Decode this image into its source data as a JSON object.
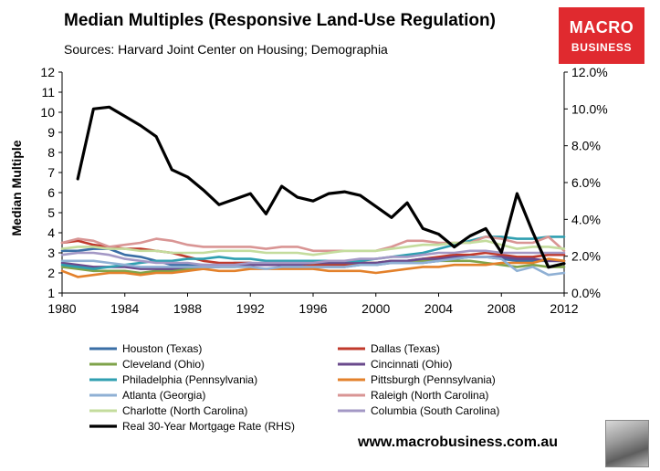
{
  "header": {
    "title": "Median Multiples (Responsive Land-Use Regulation)",
    "subtitle": "Sources: Harvard Joint Center on Housing; Demographia"
  },
  "logo": {
    "line1": "MACRO",
    "line2": "BUSINESS"
  },
  "footer": {
    "website": "www.macrobusiness.com.au",
    "wolf_icon": "wolf-icon"
  },
  "chart_data": {
    "type": "line",
    "title": "Median Multiples (Responsive Land-Use Regulation)",
    "ylabel": "Median Multiple",
    "ylabel_right": "",
    "xlabel": "",
    "ylim": [
      1,
      12
    ],
    "y2lim": [
      0,
      12
    ],
    "xlim": [
      1980,
      2012
    ],
    "x_ticks": [
      "1980",
      "1984",
      "1988",
      "1992",
      "1996",
      "2000",
      "2004",
      "2008",
      "2012"
    ],
    "y_ticks": [
      "1",
      "2",
      "3",
      "4",
      "5",
      "6",
      "7",
      "8",
      "9",
      "10",
      "11",
      "12"
    ],
    "y2_ticks": [
      "0.0%",
      "2.0%",
      "4.0%",
      "6.0%",
      "8.0%",
      "10.0%",
      "12.0%"
    ],
    "grid": false,
    "legend_position": "bottom",
    "x": [
      1980,
      1981,
      1982,
      1983,
      1984,
      1985,
      1986,
      1987,
      1988,
      1989,
      1990,
      1991,
      1992,
      1993,
      1994,
      1995,
      1996,
      1997,
      1998,
      1999,
      2000,
      2001,
      2002,
      2003,
      2004,
      2005,
      2006,
      2007,
      2008,
      2009,
      2010,
      2011,
      2012
    ],
    "series": [
      {
        "name": "Houston (Texas)",
        "color": "#3a6ea5",
        "axis": "left",
        "values": [
          3.1,
          3.1,
          3.2,
          3.2,
          2.9,
          2.8,
          2.6,
          2.4,
          2.4,
          2.4,
          2.4,
          2.5,
          2.5,
          2.4,
          2.4,
          2.3,
          2.3,
          2.3,
          2.3,
          2.4,
          2.4,
          2.5,
          2.5,
          2.5,
          2.6,
          2.7,
          2.8,
          2.8,
          2.7,
          2.6,
          2.6,
          2.6,
          2.6
        ]
      },
      {
        "name": "Dallas (Texas)",
        "color": "#c0392b",
        "axis": "left",
        "values": [
          3.5,
          3.6,
          3.4,
          3.3,
          3.2,
          3.2,
          3.1,
          3.0,
          2.8,
          2.6,
          2.5,
          2.5,
          2.5,
          2.4,
          2.4,
          2.4,
          2.4,
          2.4,
          2.4,
          2.5,
          2.5,
          2.6,
          2.6,
          2.7,
          2.8,
          2.9,
          2.9,
          3.0,
          2.9,
          2.8,
          2.8,
          2.9,
          2.9
        ]
      },
      {
        "name": "Cleveland (Ohio)",
        "color": "#7fa34a",
        "axis": "left",
        "values": [
          2.3,
          2.2,
          2.1,
          2.1,
          2.1,
          2.0,
          2.1,
          2.1,
          2.2,
          2.3,
          2.3,
          2.3,
          2.4,
          2.4,
          2.4,
          2.4,
          2.5,
          2.5,
          2.5,
          2.5,
          2.5,
          2.6,
          2.6,
          2.6,
          2.6,
          2.6,
          2.6,
          2.5,
          2.4,
          2.3,
          2.4,
          2.3,
          2.3
        ]
      },
      {
        "name": "Cincinnati (Ohio)",
        "color": "#6a4a8c",
        "axis": "left",
        "values": [
          2.5,
          2.4,
          2.3,
          2.3,
          2.3,
          2.2,
          2.2,
          2.2,
          2.3,
          2.3,
          2.3,
          2.4,
          2.4,
          2.4,
          2.4,
          2.4,
          2.5,
          2.5,
          2.5,
          2.5,
          2.5,
          2.6,
          2.6,
          2.7,
          2.7,
          2.8,
          2.8,
          2.8,
          2.8,
          2.7,
          2.7,
          2.6,
          2.6
        ]
      },
      {
        "name": "Philadelphia (Pennsylvania)",
        "color": "#2f9fb0",
        "axis": "left",
        "values": [
          2.4,
          2.3,
          2.2,
          2.3,
          2.4,
          2.5,
          2.6,
          2.6,
          2.7,
          2.7,
          2.8,
          2.7,
          2.7,
          2.6,
          2.6,
          2.6,
          2.6,
          2.6,
          2.6,
          2.6,
          2.7,
          2.8,
          2.9,
          3.0,
          3.2,
          3.4,
          3.6,
          3.8,
          3.8,
          3.7,
          3.7,
          3.8,
          3.8
        ]
      },
      {
        "name": "Pittsburgh (Pennsylvania)",
        "color": "#e3812b",
        "axis": "left",
        "values": [
          2.1,
          1.8,
          1.9,
          2.0,
          2.0,
          1.9,
          2.0,
          2.0,
          2.1,
          2.2,
          2.1,
          2.1,
          2.2,
          2.2,
          2.2,
          2.2,
          2.2,
          2.1,
          2.1,
          2.1,
          2.0,
          2.1,
          2.2,
          2.3,
          2.3,
          2.4,
          2.4,
          2.4,
          2.5,
          2.5,
          2.5,
          2.7,
          2.6
        ]
      },
      {
        "name": "Atlanta (Georgia)",
        "color": "#8fb0d4",
        "axis": "left",
        "values": [
          2.6,
          2.6,
          2.6,
          2.5,
          2.4,
          2.3,
          2.3,
          2.3,
          2.3,
          2.3,
          2.3,
          2.3,
          2.3,
          2.2,
          2.3,
          2.3,
          2.3,
          2.3,
          2.3,
          2.4,
          2.4,
          2.5,
          2.5,
          2.5,
          2.6,
          2.7,
          2.8,
          2.8,
          2.7,
          2.1,
          2.3,
          1.9,
          2.0
        ]
      },
      {
        "name": "Raleigh (North Carolina)",
        "color": "#d99594",
        "axis": "left",
        "values": [
          3.5,
          3.7,
          3.6,
          3.3,
          3.4,
          3.5,
          3.7,
          3.6,
          3.4,
          3.3,
          3.3,
          3.3,
          3.3,
          3.2,
          3.3,
          3.3,
          3.1,
          3.1,
          3.1,
          3.1,
          3.1,
          3.3,
          3.6,
          3.6,
          3.5,
          3.5,
          3.5,
          3.8,
          3.7,
          3.5,
          3.5,
          3.8,
          3.1
        ]
      },
      {
        "name": "Charlotte (North Carolina)",
        "color": "#c4dc9d",
        "axis": "left",
        "values": [
          3.2,
          3.3,
          3.3,
          3.2,
          3.2,
          3.1,
          3.1,
          3.0,
          3.0,
          3.0,
          3.1,
          3.1,
          3.1,
          3.0,
          3.0,
          3.0,
          2.9,
          3.0,
          3.1,
          3.1,
          3.1,
          3.2,
          3.3,
          3.4,
          3.4,
          3.5,
          3.5,
          3.6,
          3.4,
          3.2,
          3.3,
          3.3,
          3.2
        ]
      },
      {
        "name": "Columbia (South Carolina)",
        "color": "#a398c5",
        "axis": "left",
        "values": [
          2.9,
          3.0,
          3.0,
          2.9,
          2.7,
          2.6,
          2.5,
          2.5,
          2.5,
          2.4,
          2.4,
          2.4,
          2.5,
          2.5,
          2.5,
          2.5,
          2.5,
          2.6,
          2.6,
          2.7,
          2.7,
          2.8,
          2.8,
          2.9,
          3.0,
          3.0,
          3.1,
          3.1,
          3.0,
          3.0,
          3.0,
          3.0,
          3.0
        ]
      },
      {
        "name": "Real 30-Year Mortgage Rate (RHS)",
        "color": "#000000",
        "axis": "right",
        "values": [
          null,
          6.2,
          10.0,
          10.1,
          9.6,
          9.1,
          8.5,
          6.7,
          6.3,
          5.6,
          4.8,
          5.1,
          5.4,
          4.3,
          5.8,
          5.2,
          5.0,
          5.4,
          5.5,
          5.3,
          4.7,
          4.1,
          4.9,
          3.5,
          3.2,
          2.5,
          3.1,
          3.5,
          2.2,
          5.4,
          3.3,
          1.4,
          1.6
        ]
      }
    ]
  }
}
